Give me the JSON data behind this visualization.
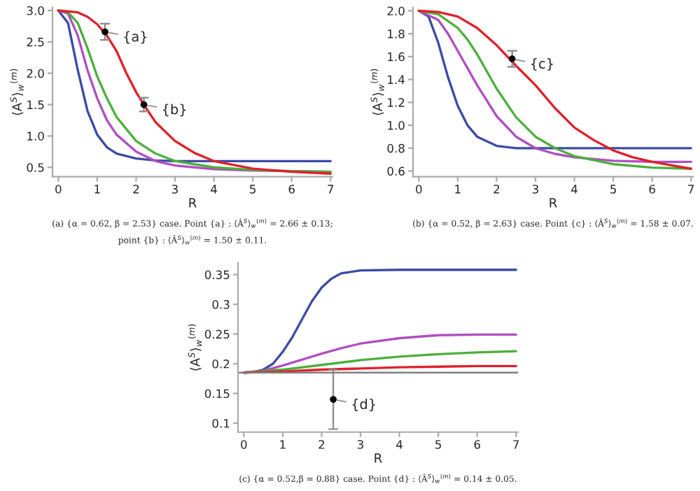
{
  "chart_data": [
    {
      "type": "line",
      "xlabel": "R",
      "ylabel": "⟨A$^{S}$⟩$_{w}$$^{(m)}$",
      "xlim": [
        -0.15,
        7.05
      ],
      "ylim": [
        0.35,
        3.05
      ],
      "xticks": [
        0,
        1,
        2,
        3,
        4,
        5,
        6,
        7
      ],
      "yticks": [
        0.5,
        {
          "value": 1,
          "label": "1.0"
        },
        1.5,
        {
          "value": 2,
          "label": "2.0"
        },
        2.5,
        {
          "value": 3,
          "label": "3.0"
        }
      ],
      "grid": false,
      "series": [
        {
          "color": "#3b4ba5",
          "x": [
            0,
            0.25,
            0.5,
            0.75,
            1.0,
            1.25,
            1.5,
            2,
            2.5,
            3,
            7
          ],
          "values": [
            3.0,
            2.8,
            2.05,
            1.4,
            1.02,
            0.82,
            0.72,
            0.64,
            0.61,
            0.6,
            0.6
          ]
        },
        {
          "color": "#b04fbf",
          "x": [
            0,
            0.25,
            0.5,
            0.75,
            1.0,
            1.25,
            1.5,
            2,
            2.5,
            3,
            4,
            5,
            6,
            7
          ],
          "values": [
            3.0,
            2.95,
            2.6,
            2.05,
            1.6,
            1.25,
            1.02,
            0.75,
            0.6,
            0.53,
            0.47,
            0.45,
            0.44,
            0.43
          ]
        },
        {
          "color": "#4caf3c",
          "x": [
            0,
            0.25,
            0.5,
            0.75,
            1.0,
            1.25,
            1.5,
            2,
            2.5,
            3,
            4,
            5,
            6,
            7
          ],
          "values": [
            3.0,
            2.97,
            2.8,
            2.4,
            1.95,
            1.6,
            1.3,
            0.92,
            0.72,
            0.6,
            0.5,
            0.46,
            0.44,
            0.43
          ]
        },
        {
          "color": "#e0202a",
          "x": [
            0,
            0.5,
            0.75,
            1.0,
            1.25,
            1.5,
            1.75,
            2,
            2.25,
            2.5,
            3,
            3.5,
            4,
            5,
            6,
            7
          ],
          "values": [
            3.0,
            2.97,
            2.9,
            2.78,
            2.6,
            2.35,
            2.0,
            1.7,
            1.45,
            1.22,
            0.92,
            0.73,
            0.6,
            0.48,
            0.43,
            0.4
          ]
        },
        {
          "type": "scatter",
          "color": "#000000",
          "x": [
            1.2,
            2.2
          ],
          "values": [
            2.66,
            1.5
          ],
          "errors": [
            0.13,
            0.11
          ]
        }
      ],
      "annotations": [
        {
          "text": "{a}",
          "x": 1.2,
          "y": 2.66
        },
        {
          "text": "{b}",
          "x": 2.2,
          "y": 1.5
        },
        "(a) {α = 0.62, β = 2.53} case. Point {a} : ⟨Â$^{S}$⟩$_{w}$$^{(m)}$ = 2.66 ± 0.13;",
        "point {b} : ⟨Â$^{S}$⟩$_{w}$$^{(m)}$ = 1.50 ± 0.11."
      ]
    },
    {
      "type": "line",
      "xlabel": "R",
      "ylabel": "⟨A$^{S}$⟩$_{w}$$^{(m)}$",
      "xlim": [
        -0.15,
        7.05
      ],
      "ylim": [
        0.55,
        2.03
      ],
      "xticks": [
        0,
        1,
        2,
        3,
        4,
        5,
        6,
        7
      ],
      "yticks": [
        0.6,
        0.8,
        {
          "value": 1,
          "label": "1.0"
        },
        1.2,
        1.4,
        1.6,
        1.8,
        {
          "value": 2,
          "label": "2.0"
        }
      ],
      "grid": false,
      "series": [
        {
          "color": "#3b4ba5",
          "x": [
            0,
            0.25,
            0.5,
            0.75,
            1.0,
            1.25,
            1.5,
            2,
            2.5,
            3,
            7
          ],
          "values": [
            2.0,
            1.95,
            1.72,
            1.42,
            1.17,
            1.0,
            0.9,
            0.82,
            0.8,
            0.8,
            0.8
          ]
        },
        {
          "color": "#b04fbf",
          "x": [
            0,
            0.5,
            0.75,
            1.0,
            1.25,
            1.5,
            2,
            2.5,
            3,
            3.5,
            4,
            5,
            6,
            7
          ],
          "values": [
            2.0,
            1.92,
            1.8,
            1.65,
            1.5,
            1.35,
            1.08,
            0.9,
            0.8,
            0.75,
            0.72,
            0.69,
            0.68,
            0.68
          ]
        },
        {
          "color": "#4caf3c",
          "x": [
            0,
            0.5,
            1.0,
            1.25,
            1.5,
            2,
            2.5,
            3,
            3.5,
            4,
            5,
            6,
            7
          ],
          "values": [
            2.0,
            1.97,
            1.85,
            1.75,
            1.62,
            1.32,
            1.07,
            0.9,
            0.8,
            0.73,
            0.66,
            0.63,
            0.62
          ]
        },
        {
          "color": "#e0202a",
          "x": [
            0,
            0.5,
            1.0,
            1.5,
            2,
            2.5,
            3,
            3.5,
            4,
            4.5,
            5,
            5.5,
            6,
            6.5,
            7
          ],
          "values": [
            2.0,
            1.99,
            1.95,
            1.85,
            1.7,
            1.52,
            1.35,
            1.15,
            0.98,
            0.87,
            0.78,
            0.72,
            0.68,
            0.65,
            0.62
          ]
        },
        {
          "type": "scatter",
          "color": "#000000",
          "x": [
            2.4
          ],
          "values": [
            1.58
          ],
          "errors": [
            0.07
          ]
        }
      ],
      "annotations": [
        {
          "text": "{c}",
          "x": 2.4,
          "y": 1.58
        },
        "(b) {α = 0.52, β = 2.63} case. Point {c} : ⟨Â$^{S}$⟩$_{w}$$^{(m)}$ = 1.58 ± 0.07."
      ]
    },
    {
      "type": "line",
      "xlabel": "R",
      "ylabel": "⟨A$^{S}$⟩$_{w}$$^{(m)}$",
      "xlim": [
        -0.15,
        7.05
      ],
      "ylim": [
        0.085,
        0.37
      ],
      "xticks": [
        0,
        1,
        2,
        3,
        4,
        5,
        6,
        7
      ],
      "yticks": [
        0.1,
        0.15,
        0.2,
        0.25,
        0.3,
        0.35
      ],
      "grid": false,
      "ref_lines": [
        {
          "axis": "y",
          "value": 0.185,
          "color": "#808080"
        }
      ],
      "series": [
        {
          "color": "#3b4ba5",
          "x": [
            0,
            0.25,
            0.5,
            0.75,
            1.0,
            1.25,
            1.5,
            1.75,
            2,
            2.25,
            2.5,
            3,
            4,
            7
          ],
          "values": [
            0.185,
            0.186,
            0.19,
            0.2,
            0.22,
            0.245,
            0.275,
            0.305,
            0.328,
            0.343,
            0.352,
            0.357,
            0.358,
            0.358
          ]
        },
        {
          "color": "#b04fbf",
          "x": [
            0,
            0.5,
            1,
            1.5,
            2,
            2.5,
            3,
            4,
            5,
            6,
            7
          ],
          "values": [
            0.185,
            0.188,
            0.197,
            0.207,
            0.217,
            0.226,
            0.234,
            0.243,
            0.248,
            0.249,
            0.249
          ]
        },
        {
          "color": "#4caf3c",
          "x": [
            0,
            1,
            2,
            3,
            4,
            5,
            6,
            7
          ],
          "values": [
            0.185,
            0.19,
            0.198,
            0.206,
            0.212,
            0.216,
            0.219,
            0.221
          ]
        },
        {
          "color": "#e0202a",
          "x": [
            0,
            1,
            2,
            3,
            4,
            5,
            6,
            7
          ],
          "values": [
            0.185,
            0.187,
            0.19,
            0.192,
            0.194,
            0.195,
            0.196,
            0.196
          ]
        },
        {
          "type": "scatter",
          "color": "#000000",
          "x": [
            2.3
          ],
          "values": [
            0.14
          ],
          "errors": [
            0.05
          ]
        }
      ],
      "annotations": [
        {
          "text": "{d}",
          "x": 2.3,
          "y": 0.14
        },
        "(c) {α = 0.52,β = 0.88} case. Point {d} : ⟨Â$^{S}$⟩$_{w}$$^{(m)}$ = 0.14 ± 0.05."
      ]
    }
  ]
}
